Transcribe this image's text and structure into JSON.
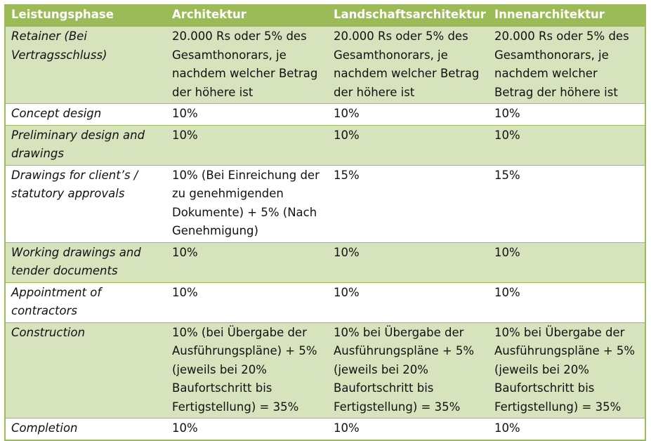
{
  "colors": {
    "header_bg": "#9bbb59",
    "band_bg": "#d6e3bc",
    "plain_bg": "#ffffff",
    "header_text": "#ffffff"
  },
  "table": {
    "headers": [
      "Leistungsphase",
      "Architektur",
      "Landschaftsarchitektur",
      "Innenarchitektur"
    ],
    "rows": [
      {
        "phase": "Retainer (Bei Vertragsschluss)",
        "architektur": "20.000 Rs oder 5% des Gesamthonorars, je nachdem welcher Betrag der höhere ist",
        "landschaft": "20.000 Rs oder 5% des Gesamthonorars, je nachdem welcher Betrag der höhere ist",
        "innen": "20.000 Rs oder 5% des Gesamthonorars, je nachdem welcher Betrag der höhere ist"
      },
      {
        "phase": "Concept design",
        "architektur": "10%",
        "landschaft": "10%",
        "innen": "10%"
      },
      {
        "phase": "Preliminary design and drawings",
        "architektur": "10%",
        "landschaft": "10%",
        "innen": "10%"
      },
      {
        "phase": "Drawings for client’s / statutory approvals",
        "architektur": "10% (Bei Einreichung der zu genehmigenden Dokumente) + 5% (Nach Genehmigung)",
        "landschaft": "15%",
        "innen": "15%"
      },
      {
        "phase": "Working drawings and tender documents",
        "architektur": "10%",
        "landschaft": "10%",
        "innen": "10%"
      },
      {
        "phase": "Appointment of contractors",
        "architektur": "10%",
        "landschaft": "10%",
        "innen": "10%"
      },
      {
        "phase": "Construction",
        "architektur": "10% (bei Übergabe der Ausführungspläne) + 5% (jeweils bei 20% Baufortschritt bis Fertigstellung) = 35%",
        "landschaft": "10% bei Übergabe der Ausführungspläne + 5% (jeweils bei 20% Baufortschritt bis Fertigstellung) = 35%",
        "innen": "10% bei Übergabe der Ausführungspläne + 5% (jeweils bei 20% Baufortschritt bis Fertigstellung) = 35%"
      },
      {
        "phase": "Completion",
        "architektur": "10%",
        "landschaft": "10%",
        "innen": "10%"
      }
    ]
  }
}
